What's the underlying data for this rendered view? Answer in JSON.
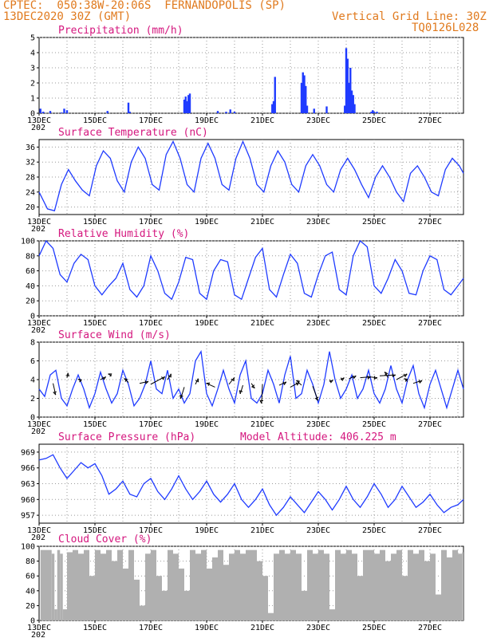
{
  "header": {
    "line1_left": "CPTEC:  050:38W-20:06S  FERNANDOPOLIS (SP)",
    "line2_left": "13DEC2020 30Z (GMT)",
    "line2_right": "Vertical Grid Line: 30Z",
    "line3_right": "TQ0126L028"
  },
  "colors": {
    "series": "#1f3bff",
    "title": "#d4177e",
    "header": "#e07a1e",
    "cloud": "#b0b0b0",
    "arrow": "#000000"
  },
  "x_labels": [
    "13DEC",
    "15DEC",
    "17DEC",
    "19DEC",
    "21DEC",
    "23DEC",
    "25DEC",
    "27DEC"
  ],
  "x_label_sub": "202",
  "chart_data": [
    {
      "id": "precip",
      "type": "bar",
      "title": "Precipitation (mm/h)",
      "ylim": [
        0,
        5
      ],
      "yticks": [
        0,
        1,
        2,
        3,
        4,
        5
      ],
      "xlim": [
        0,
        15.2
      ],
      "values": [
        [
          0.05,
          0.3
        ],
        [
          0.15,
          0.1
        ],
        [
          0.4,
          0.15
        ],
        [
          0.8,
          0.05
        ],
        [
          0.9,
          0.3
        ],
        [
          1.0,
          0.2
        ],
        [
          2.45,
          0.15
        ],
        [
          3.2,
          0.7
        ],
        [
          3.25,
          0.1
        ],
        [
          5.2,
          0.9
        ],
        [
          5.25,
          1.1
        ],
        [
          5.3,
          0.8
        ],
        [
          5.35,
          1.2
        ],
        [
          5.4,
          1.3
        ],
        [
          6.4,
          0.15
        ],
        [
          6.7,
          0.1
        ],
        [
          6.85,
          0.25
        ],
        [
          7.0,
          0.1
        ],
        [
          8.35,
          0.6
        ],
        [
          8.4,
          0.8
        ],
        [
          8.45,
          2.4
        ],
        [
          9.4,
          2.0
        ],
        [
          9.45,
          2.7
        ],
        [
          9.5,
          2.5
        ],
        [
          9.55,
          1.8
        ],
        [
          9.6,
          0.5
        ],
        [
          9.85,
          0.3
        ],
        [
          10.3,
          0.45
        ],
        [
          10.95,
          0.5
        ],
        [
          11.0,
          4.3
        ],
        [
          11.05,
          3.6
        ],
        [
          11.1,
          2.0
        ],
        [
          11.15,
          3.0
        ],
        [
          11.2,
          1.5
        ],
        [
          11.25,
          1.2
        ],
        [
          11.3,
          0.6
        ],
        [
          11.9,
          0.1
        ],
        [
          11.95,
          0.2
        ],
        [
          12.0,
          0.1
        ],
        [
          12.1,
          0.1
        ]
      ]
    },
    {
      "id": "temp",
      "type": "line",
      "title": "Surface Temperature (nC)",
      "ylim": [
        18,
        38
      ],
      "yticks": [
        20,
        24,
        28,
        32,
        36
      ],
      "xlim": [
        0,
        15.2
      ],
      "x": [
        0,
        0.3,
        0.55,
        0.8,
        1.05,
        1.3,
        1.55,
        1.8,
        2.05,
        2.3,
        2.55,
        2.8,
        3.05,
        3.3,
        3.55,
        3.8,
        4.05,
        4.3,
        4.55,
        4.8,
        5.05,
        5.3,
        5.55,
        5.8,
        6.05,
        6.3,
        6.55,
        6.8,
        7.05,
        7.3,
        7.55,
        7.8,
        8.05,
        8.3,
        8.55,
        8.8,
        9.05,
        9.3,
        9.55,
        9.8,
        10.05,
        10.3,
        10.55,
        10.8,
        11.05,
        11.3,
        11.55,
        11.8,
        12.05,
        12.3,
        12.55,
        12.8,
        13.05,
        13.3,
        13.55,
        13.8,
        14.05,
        14.3,
        14.55,
        14.8,
        15.05,
        15.2
      ],
      "y": [
        24,
        19.5,
        19,
        26,
        30,
        27,
        24.5,
        23,
        31,
        35,
        33,
        27,
        24,
        32,
        36,
        33,
        26,
        24.5,
        34,
        37.5,
        33,
        26,
        24,
        33,
        37,
        33,
        26,
        24.5,
        33,
        37.5,
        33,
        26,
        24,
        31,
        35,
        32,
        26,
        24,
        31,
        34,
        31,
        26,
        24,
        30,
        33,
        30,
        26,
        22.5,
        28,
        31,
        28,
        24,
        21.5,
        29,
        31,
        28,
        24,
        23,
        30,
        33,
        31,
        29
      ]
    },
    {
      "id": "rh",
      "type": "line",
      "title": "Relative Humidity (%)",
      "ylim": [
        0,
        100
      ],
      "yticks": [
        0,
        20,
        40,
        60,
        80,
        100
      ],
      "xlim": [
        0,
        15.2
      ],
      "x": [
        0,
        0.25,
        0.5,
        0.75,
        1.0,
        1.25,
        1.5,
        1.75,
        2.0,
        2.25,
        2.5,
        2.75,
        3.0,
        3.25,
        3.5,
        3.75,
        4.0,
        4.25,
        4.5,
        4.75,
        5.0,
        5.25,
        5.5,
        5.75,
        6.0,
        6.25,
        6.5,
        6.75,
        7.0,
        7.25,
        7.5,
        7.75,
        8.0,
        8.25,
        8.5,
        8.75,
        9.0,
        9.25,
        9.5,
        9.75,
        10.0,
        10.25,
        10.5,
        10.75,
        11.0,
        11.25,
        11.5,
        11.75,
        12.0,
        12.25,
        12.5,
        12.75,
        13.0,
        13.25,
        13.5,
        13.75,
        14.0,
        14.25,
        14.5,
        14.75,
        15.0,
        15.2
      ],
      "y": [
        80,
        100,
        90,
        55,
        45,
        70,
        82,
        75,
        40,
        28,
        40,
        50,
        70,
        35,
        25,
        40,
        80,
        60,
        30,
        22,
        45,
        78,
        75,
        30,
        22,
        60,
        75,
        72,
        28,
        22,
        50,
        78,
        90,
        35,
        25,
        55,
        82,
        70,
        30,
        25,
        55,
        80,
        85,
        35,
        28,
        80,
        100,
        92,
        40,
        30,
        50,
        75,
        60,
        30,
        28,
        60,
        80,
        75,
        35,
        28,
        40,
        50
      ]
    },
    {
      "id": "wind",
      "type": "line",
      "title": "Surface Wind (m/s)",
      "ylim": [
        0,
        8
      ],
      "yticks": [
        0,
        2,
        4,
        6,
        8
      ],
      "xlim": [
        0,
        15.2
      ],
      "x": [
        0,
        0.2,
        0.4,
        0.6,
        0.8,
        1.0,
        1.2,
        1.4,
        1.6,
        1.8,
        2.0,
        2.2,
        2.4,
        2.6,
        2.8,
        3.0,
        3.2,
        3.4,
        3.6,
        3.8,
        4.0,
        4.2,
        4.4,
        4.6,
        4.8,
        5.0,
        5.2,
        5.4,
        5.6,
        5.8,
        6.0,
        6.2,
        6.4,
        6.6,
        6.8,
        7.0,
        7.2,
        7.4,
        7.6,
        7.8,
        8.0,
        8.2,
        8.4,
        8.6,
        8.8,
        9.0,
        9.2,
        9.4,
        9.6,
        9.8,
        10.0,
        10.2,
        10.4,
        10.6,
        10.8,
        11.0,
        11.2,
        11.4,
        11.6,
        11.8,
        12.0,
        12.2,
        12.4,
        12.6,
        12.8,
        13.0,
        13.2,
        13.4,
        13.6,
        13.8,
        14.0,
        14.2,
        14.4,
        14.6,
        14.8,
        15.0,
        15.2
      ],
      "y": [
        3,
        2.2,
        4.5,
        5,
        2,
        1.2,
        3,
        4.5,
        3,
        1,
        2.5,
        4.8,
        3,
        1.5,
        2.5,
        5,
        3.5,
        1.2,
        2,
        3.5,
        6,
        3,
        2.5,
        5,
        2,
        3,
        1.5,
        2.5,
        6,
        7,
        2.5,
        1.2,
        3,
        5,
        3,
        1.5,
        4.5,
        6,
        2,
        1.5,
        2.5,
        5,
        3.5,
        1.5,
        4.5,
        6.5,
        2,
        2.5,
        5,
        3.5,
        1.5,
        3.5,
        7,
        4,
        2,
        3,
        4.5,
        2,
        3,
        5,
        2.5,
        1.5,
        3,
        5.5,
        3,
        1.5,
        4,
        5.5,
        2.5,
        1,
        3.5,
        5,
        3,
        1,
        3,
        5,
        3
      ],
      "arrows": [
        [
          0.5,
          3.6,
          0.15,
          -1.2
        ],
        [
          1.0,
          4.2,
          0.05,
          0.5
        ],
        [
          1.5,
          3.8,
          -0.15,
          0.25
        ],
        [
          2.2,
          4.0,
          0.3,
          0.3
        ],
        [
          2.6,
          4.4,
          -0.2,
          0.2
        ],
        [
          3.2,
          3.7,
          -0.25,
          0.4
        ],
        [
          3.6,
          3.6,
          0.5,
          0.2
        ],
        [
          4.0,
          3.5,
          0.8,
          0.8
        ],
        [
          4.6,
          4.0,
          0.2,
          0.6
        ],
        [
          5.2,
          3.2,
          -0.2,
          -1.2
        ],
        [
          5.6,
          3.5,
          0.15,
          0.6
        ],
        [
          6.3,
          3.2,
          -0.5,
          0.4
        ],
        [
          6.8,
          3.5,
          0.3,
          0.7
        ],
        [
          7.3,
          3.4,
          -0.15,
          -0.9
        ],
        [
          7.6,
          3.6,
          0.2,
          -0.5
        ],
        [
          8.0,
          3.5,
          -0.05,
          -2.0
        ],
        [
          8.6,
          3.4,
          0.4,
          0.35
        ],
        [
          9.0,
          3.2,
          0.5,
          0.5
        ],
        [
          9.4,
          3.4,
          -0.3,
          0.5
        ],
        [
          9.8,
          3.3,
          0.3,
          -1.5
        ],
        [
          10.4,
          3.8,
          0.2,
          0.15
        ],
        [
          10.8,
          4.0,
          0.2,
          0.2
        ],
        [
          11.1,
          4.1,
          0.4,
          0.3
        ],
        [
          11.5,
          4.2,
          0.6,
          0.1
        ],
        [
          11.8,
          4.3,
          0.5,
          -0.1
        ],
        [
          12.2,
          4.4,
          0.9,
          0.1
        ],
        [
          12.5,
          4.2,
          -0.2,
          0.6
        ],
        [
          12.8,
          4.0,
          0.6,
          0.6
        ],
        [
          13.2,
          3.8,
          -0.2,
          0.3
        ],
        [
          13.4,
          3.6,
          0.5,
          0.3
        ]
      ]
    },
    {
      "id": "pres",
      "type": "line",
      "title": "Surface Pressure (hPa)",
      "subtitle": "Model Altitude: 406.225 m",
      "ylim": [
        955.5,
        970.5
      ],
      "yticks": [
        957,
        960,
        963,
        966,
        969
      ],
      "xlim": [
        0,
        15.2
      ],
      "x": [
        0,
        0.25,
        0.5,
        0.75,
        1.0,
        1.25,
        1.5,
        1.75,
        2.0,
        2.25,
        2.5,
        2.75,
        3.0,
        3.25,
        3.5,
        3.75,
        4.0,
        4.25,
        4.5,
        4.75,
        5.0,
        5.25,
        5.5,
        5.75,
        6.0,
        6.25,
        6.5,
        6.75,
        7.0,
        7.25,
        7.5,
        7.75,
        8.0,
        8.25,
        8.5,
        8.75,
        9.0,
        9.25,
        9.5,
        9.75,
        10.0,
        10.25,
        10.5,
        10.75,
        11.0,
        11.25,
        11.5,
        11.75,
        12.0,
        12.25,
        12.5,
        12.75,
        13.0,
        13.25,
        13.5,
        13.75,
        14.0,
        14.25,
        14.5,
        14.75,
        15.0,
        15.2
      ],
      "y": [
        967.5,
        967.8,
        968.5,
        966,
        964,
        965.5,
        967,
        966,
        966.8,
        964.5,
        961,
        962,
        963.5,
        961,
        960.5,
        963,
        964,
        961.5,
        960,
        962,
        964.5,
        962,
        960,
        961.5,
        963.5,
        961,
        959.5,
        961,
        963,
        960,
        958.5,
        960,
        962,
        959,
        957,
        958.5,
        960.5,
        959,
        957.5,
        959.5,
        961.5,
        960,
        958,
        960,
        962.5,
        960,
        958.5,
        960.5,
        963,
        961,
        958.5,
        960,
        962.5,
        960.5,
        958.5,
        959.5,
        961,
        959,
        957.5,
        958.5,
        959,
        960
      ]
    },
    {
      "id": "cloud",
      "type": "bar",
      "title": "Cloud Cover (%)",
      "ylim": [
        0,
        100
      ],
      "yticks": [
        0,
        20,
        40,
        60,
        80,
        100
      ],
      "xlim": [
        0,
        15.2
      ],
      "x": [
        0.05,
        0.45,
        0.55,
        0.65,
        0.75,
        0.85,
        1.0,
        1.2,
        1.4,
        1.6,
        1.8,
        2.0,
        2.2,
        2.4,
        2.6,
        2.8,
        3.0,
        3.2,
        3.4,
        3.6,
        3.8,
        4.0,
        4.2,
        4.4,
        4.6,
        4.8,
        5.0,
        5.2,
        5.4,
        5.6,
        5.8,
        6.0,
        6.2,
        6.4,
        6.6,
        6.8,
        7.0,
        7.2,
        7.4,
        7.6,
        7.8,
        8.0,
        8.2,
        8.4,
        8.6,
        8.8,
        9.0,
        9.2,
        9.4,
        9.6,
        9.8,
        10.0,
        10.2,
        10.4,
        10.6,
        10.8,
        11.0,
        11.2,
        11.4,
        11.6,
        11.8,
        12.0,
        12.2,
        12.4,
        12.6,
        12.8,
        13.0,
        13.2,
        13.4,
        13.6,
        13.8,
        14.0,
        14.2,
        14.4,
        14.6,
        14.8,
        15.0,
        15.15
      ],
      "values": [
        95,
        90,
        15,
        95,
        90,
        15,
        92,
        95,
        90,
        95,
        60,
        95,
        90,
        95,
        80,
        95,
        70,
        95,
        55,
        20,
        90,
        95,
        60,
        40,
        95,
        90,
        70,
        40,
        95,
        90,
        95,
        70,
        85,
        95,
        75,
        90,
        95,
        90,
        95,
        95,
        80,
        60,
        10,
        90,
        95,
        90,
        95,
        90,
        40,
        95,
        90,
        95,
        90,
        15,
        95,
        90,
        95,
        90,
        60,
        95,
        95,
        90,
        95,
        80,
        90,
        95,
        60,
        95,
        90,
        95,
        80,
        90,
        35,
        95,
        85,
        95,
        90,
        92
      ]
    }
  ]
}
